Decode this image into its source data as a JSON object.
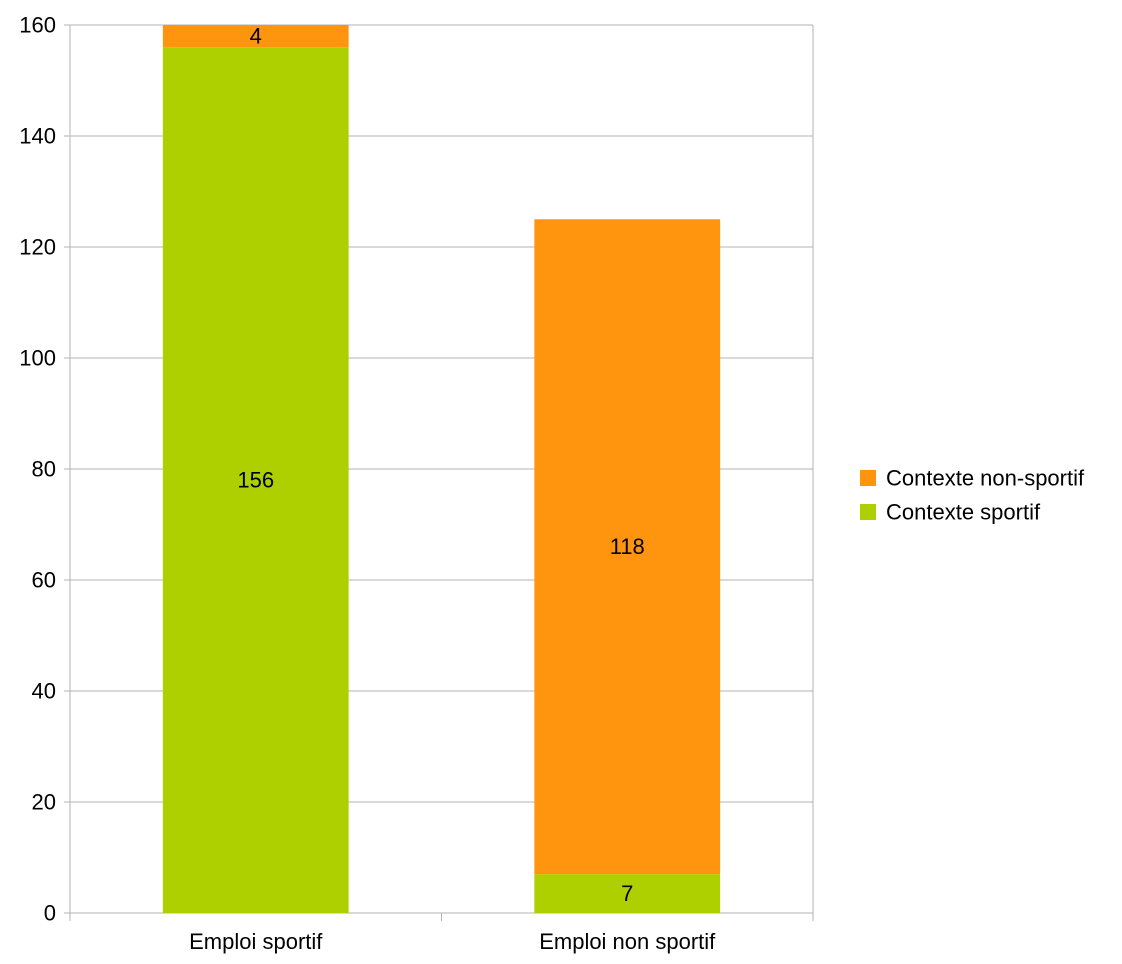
{
  "chart_data": {
    "type": "bar",
    "stacked": true,
    "categories": [
      "Emploi sportif",
      "Emploi non sportif"
    ],
    "series": [
      {
        "name": "Contexte sportif",
        "values": [
          156,
          7
        ],
        "color": "#aecf00"
      },
      {
        "name": "Contexte non-sportif",
        "values": [
          4,
          118
        ],
        "color": "#ff950e"
      }
    ],
    "ylim": [
      0,
      160
    ],
    "yticks": [
      "0",
      "20",
      "40",
      "60",
      "80",
      "100",
      "120",
      "140",
      "160"
    ],
    "grid": true,
    "legend_position": "right",
    "legend": [
      "Contexte non-sportif",
      "Contexte sportif"
    ],
    "title": "",
    "xlabel": "",
    "ylabel": ""
  }
}
